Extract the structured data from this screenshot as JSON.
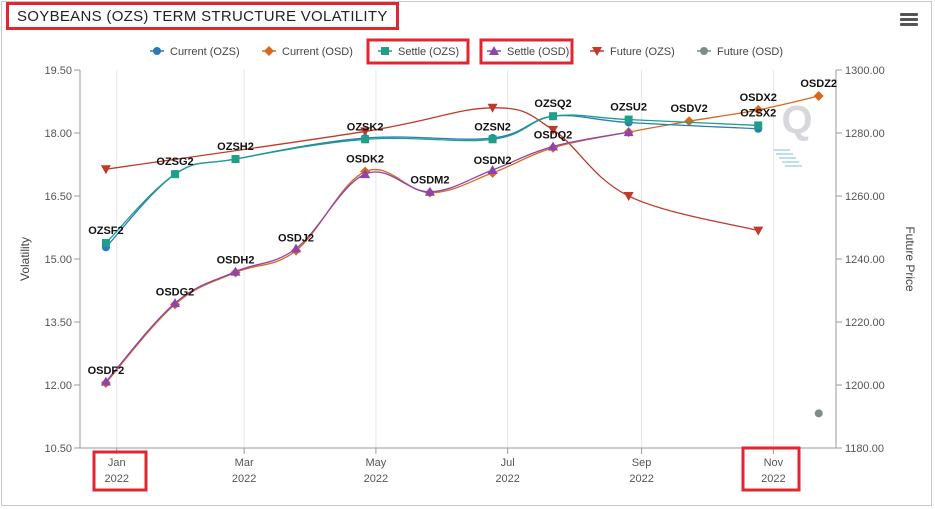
{
  "title": "SOYBEANS (OZS) TERM STRUCTURE VOLATILITY",
  "menu_icon": "hamburger-menu-icon",
  "watermark": "Q",
  "chart_data": {
    "type": "line",
    "x_axis": {
      "type": "datetime",
      "min": "2021-12-15",
      "max": "2022-11-30",
      "ticks": [
        {
          "date": "2022-01-01",
          "month": "Jan",
          "year": "2022"
        },
        {
          "date": "2022-03-01",
          "month": "Mar",
          "year": "2022"
        },
        {
          "date": "2022-05-01",
          "month": "May",
          "year": "2022"
        },
        {
          "date": "2022-07-01",
          "month": "Jul",
          "year": "2022"
        },
        {
          "date": "2022-09-01",
          "month": "Sep",
          "year": "2022"
        },
        {
          "date": "2022-11-01",
          "month": "Nov",
          "year": "2022"
        }
      ]
    },
    "y_left": {
      "label": "Volatility",
      "min": 10.5,
      "max": 19.5,
      "ticks": [
        "10.50",
        "12.00",
        "13.50",
        "15.00",
        "16.50",
        "18.00",
        "19.50"
      ]
    },
    "y_right": {
      "label": "Future Price",
      "min": 1180,
      "max": 1300,
      "ticks": [
        "1180.00",
        "1200.00",
        "1220.00",
        "1240.00",
        "1260.00",
        "1280.00",
        "1300.00"
      ]
    },
    "legend_position": "top",
    "grid": "x-only",
    "series": [
      {
        "name": "Current (OZS)",
        "axis": "left",
        "color": "#2b7bb9",
        "marker": "circle",
        "labels": false,
        "points": [
          {
            "x": "2021-12-27",
            "y": 15.28
          },
          {
            "x": "2022-01-28",
            "y": 17.02
          },
          {
            "x": "2022-02-25",
            "y": 17.38
          },
          {
            "x": "2022-04-26",
            "y": 17.88
          },
          {
            "x": "2022-06-24",
            "y": 17.88
          },
          {
            "x": "2022-07-22",
            "y": 18.4
          },
          {
            "x": "2022-08-26",
            "y": 18.25
          },
          {
            "x": "2022-10-25",
            "y": 18.1
          }
        ]
      },
      {
        "name": "Current (OSD)",
        "axis": "left",
        "color": "#d9681f",
        "marker": "diamond",
        "labels": true,
        "points": [
          {
            "x": "2021-12-27",
            "y": 12.05,
            "label": "OSDF2"
          },
          {
            "x": "2022-01-28",
            "y": 13.92,
            "label": "OSDG2"
          },
          {
            "x": "2022-02-25",
            "y": 14.68,
            "label": "OSDH2"
          },
          {
            "x": "2022-03-25",
            "y": 15.2,
            "label": "OSDJ2"
          },
          {
            "x": "2022-04-26",
            "y": 17.08,
            "label": "OSDK2"
          },
          {
            "x": "2022-05-26",
            "y": 16.58,
            "label": "OSDM2"
          },
          {
            "x": "2022-06-24",
            "y": 17.05,
            "label": "OSDN2"
          },
          {
            "x": "2022-07-22",
            "y": 17.65,
            "label": "OSDQ2"
          },
          {
            "x": "2022-08-26",
            "y": 18.02,
            "label": ""
          },
          {
            "x": "2022-09-23",
            "y": 18.28,
            "label": "OSDV2"
          },
          {
            "x": "2022-10-25",
            "y": 18.55,
            "label": "OSDX2"
          },
          {
            "x": "2022-11-22",
            "y": 18.88,
            "label": "OSDZ2"
          }
        ]
      },
      {
        "name": "Settle (OZS)",
        "axis": "left",
        "color": "#1f9e89",
        "marker": "square",
        "labels": true,
        "points": [
          {
            "x": "2021-12-27",
            "y": 15.38,
            "label": "OZSF2"
          },
          {
            "x": "2022-01-28",
            "y": 17.02,
            "label": "OZSG2"
          },
          {
            "x": "2022-02-25",
            "y": 17.38,
            "label": "OZSH2"
          },
          {
            "x": "2022-04-26",
            "y": 17.85,
            "label": "OZSK2"
          },
          {
            "x": "2022-06-24",
            "y": 17.85,
            "label": "OZSN2"
          },
          {
            "x": "2022-07-22",
            "y": 18.4,
            "label": "OZSQ2"
          },
          {
            "x": "2022-08-26",
            "y": 18.32,
            "label": "OZSU2"
          },
          {
            "x": "2022-10-25",
            "y": 18.18,
            "label": "OZSX2"
          }
        ]
      },
      {
        "name": "Settle (OSD)",
        "axis": "left",
        "color": "#8e44ad",
        "marker": "triangle-up",
        "labels": false,
        "points": [
          {
            "x": "2021-12-27",
            "y": 12.08
          },
          {
            "x": "2022-01-28",
            "y": 13.95
          },
          {
            "x": "2022-02-25",
            "y": 14.7
          },
          {
            "x": "2022-03-25",
            "y": 15.25
          },
          {
            "x": "2022-04-26",
            "y": 17.02
          },
          {
            "x": "2022-05-26",
            "y": 16.6
          },
          {
            "x": "2022-06-24",
            "y": 17.12
          },
          {
            "x": "2022-07-22",
            "y": 17.68
          },
          {
            "x": "2022-08-26",
            "y": 18.02
          }
        ]
      },
      {
        "name": "Future (OZS)",
        "axis": "right",
        "color": "#c0392b",
        "marker": "triangle-down",
        "labels": false,
        "points": [
          {
            "x": "2021-12-27",
            "y": 1268.5
          },
          {
            "x": "2022-04-26",
            "y": 1280.5
          },
          {
            "x": "2022-06-24",
            "y": 1288
          },
          {
            "x": "2022-07-22",
            "y": 1281
          },
          {
            "x": "2022-08-26",
            "y": 1260
          },
          {
            "x": "2022-10-25",
            "y": 1249
          }
        ]
      },
      {
        "name": "Future (OSD)",
        "axis": "right",
        "color": "#7f8c8d",
        "marker": "circle",
        "labels": false,
        "points": [
          {
            "x": "2022-11-22",
            "y": 1191
          }
        ]
      }
    ]
  }
}
